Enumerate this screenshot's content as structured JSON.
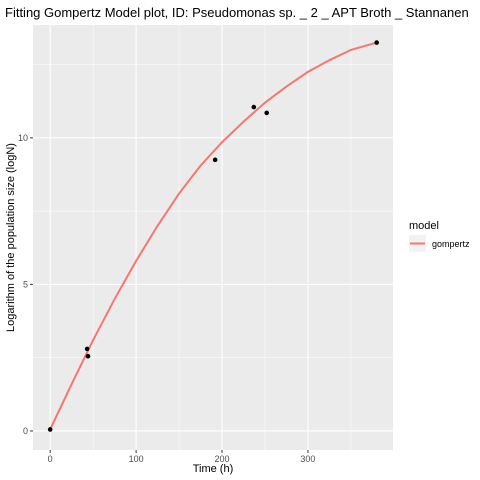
{
  "chart_data": {
    "type": "scatter",
    "title": "Fitting Gompertz Model plot, ID: Pseudomonas sp. _ 2 _ APT Broth _ Stannanen",
    "xlabel": "Time (h)",
    "ylabel": "Logarithm of the population size (logN)",
    "xlim": [
      -20,
      399
    ],
    "ylim": [
      -0.65,
      13.85
    ],
    "x_ticks": [
      0,
      100,
      200,
      300
    ],
    "y_ticks": [
      0,
      5,
      10
    ],
    "grid": true,
    "legend": {
      "title": "model",
      "position": "right",
      "entries": [
        {
          "label": "gompertz",
          "color": "#F8766D"
        }
      ]
    },
    "points": [
      {
        "x": 0,
        "y": 0.05
      },
      {
        "x": 43,
        "y": 2.8
      },
      {
        "x": 44,
        "y": 2.55
      },
      {
        "x": 192,
        "y": 9.25
      },
      {
        "x": 237,
        "y": 11.05
      },
      {
        "x": 252,
        "y": 10.85
      },
      {
        "x": 380,
        "y": 13.25
      }
    ],
    "series": [
      {
        "name": "gompertz",
        "color": "#F8766D",
        "x": [
          0,
          25,
          50,
          75,
          100,
          125,
          150,
          175,
          200,
          225,
          250,
          275,
          300,
          325,
          350,
          380
        ],
        "y": [
          0.05,
          1.6,
          3.1,
          4.5,
          5.8,
          7.0,
          8.1,
          9.05,
          9.85,
          10.55,
          11.2,
          11.75,
          12.25,
          12.65,
          13.0,
          13.25
        ]
      }
    ]
  }
}
